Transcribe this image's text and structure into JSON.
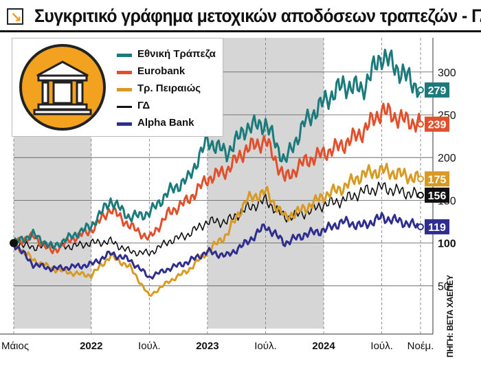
{
  "title": "Συγκριτικό γράφημα μετοχικών αποδόσεων τραπεζών - ΓΔΤ",
  "source": "ΠΗΓΗ: ΒΕΤΑ ΧΑΕΠΕΥ",
  "colors": {
    "ethniki": "#1b7a7c",
    "eurobank": "#e2502b",
    "peiraios": "#d89a22",
    "gd": "#111111",
    "alpha": "#2f2e8f",
    "band": "#d6d6d6",
    "logo": "#f2a21e"
  },
  "chart_data": {
    "type": "line",
    "title": "Συγκριτικό γράφημα μετοχικών αποδόσεων τραπεζών - ΓΔΤ",
    "x_ticks": [
      "Μάιος",
      "2022",
      "Ιούλ.",
      "2023",
      "Ιούλ.",
      "2024",
      "Ιούλ.",
      "Νοέμ."
    ],
    "y_ticks": [
      50,
      100,
      150,
      200,
      250,
      300
    ],
    "ylim": [
      0,
      340
    ],
    "x_range": [
      "2021-05",
      "2024-11"
    ],
    "grid": true,
    "legend_position": "top-left",
    "x": [
      "2021-05",
      "2021-07",
      "2021-09",
      "2021-11",
      "2022-01",
      "2022-03",
      "2022-05",
      "2022-07",
      "2022-09",
      "2022-11",
      "2023-01",
      "2023-03",
      "2023-05",
      "2023-07",
      "2023-09",
      "2023-11",
      "2024-01",
      "2024-03",
      "2024-05",
      "2024-07",
      "2024-09",
      "2024-11"
    ],
    "series": [
      {
        "name": "Εθνική Τράπεζα",
        "key": "ethniki",
        "end_label": "279",
        "values": [
          100,
          110,
          95,
          108,
          120,
          150,
          130,
          135,
          160,
          175,
          220,
          205,
          235,
          240,
          195,
          240,
          265,
          285,
          280,
          320,
          300,
          279
        ]
      },
      {
        "name": "Eurobank",
        "key": "eurobank",
        "end_label": "239",
        "values": [
          100,
          108,
          90,
          105,
          115,
          140,
          120,
          105,
          135,
          150,
          175,
          185,
          210,
          220,
          175,
          195,
          205,
          215,
          230,
          255,
          245,
          239
        ]
      },
      {
        "name": "Τρ. Πειραιώς",
        "key": "peiraios",
        "end_label": "175",
        "values": [
          100,
          80,
          70,
          65,
          62,
          85,
          72,
          38,
          55,
          68,
          90,
          110,
          150,
          160,
          130,
          140,
          155,
          165,
          180,
          185,
          180,
          175
        ]
      },
      {
        "name": "ΓΔ",
        "key": "gd",
        "end_label": "156",
        "values": [
          100,
          95,
          98,
          96,
          100,
          102,
          90,
          88,
          102,
          110,
          125,
          125,
          140,
          150,
          130,
          135,
          145,
          150,
          160,
          165,
          160,
          156
        ]
      },
      {
        "name": "Alpha Bank",
        "key": "alpha",
        "end_label": "119",
        "values": [
          100,
          75,
          70,
          72,
          75,
          88,
          80,
          60,
          70,
          78,
          90,
          85,
          100,
          120,
          100,
          110,
          115,
          125,
          120,
          130,
          125,
          119
        ]
      }
    ]
  }
}
